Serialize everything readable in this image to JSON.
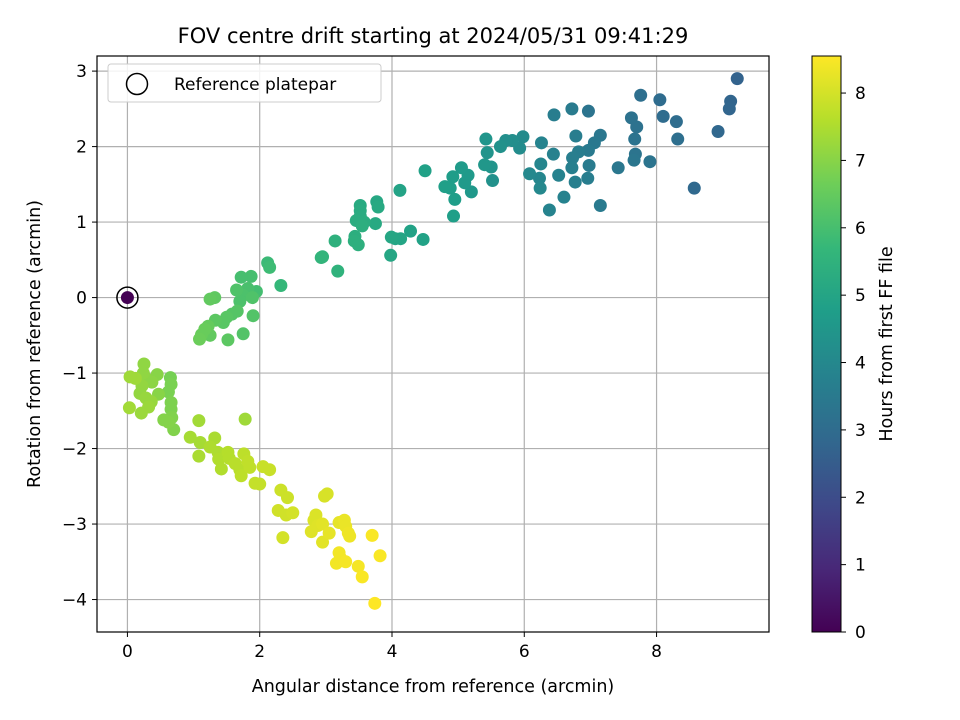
{
  "chart_data": {
    "type": "scatter",
    "title": "FOV centre drift starting at 2024/05/31 09:41:29",
    "xlabel": "Angular distance from reference (arcmin)",
    "ylabel": "Rotation from reference (arcmin)",
    "xlim": [
      -0.46,
      9.7
    ],
    "ylim": [
      -4.43,
      3.2
    ],
    "xticks": [
      0,
      2,
      4,
      6,
      8
    ],
    "yticks": [
      -4,
      -3,
      -2,
      -1,
      0,
      1,
      2,
      3
    ],
    "xtick_labels": [
      "0",
      "2",
      "4",
      "6",
      "8"
    ],
    "ytick_labels": [
      "−4",
      "−3",
      "−2",
      "−1",
      "0",
      "1",
      "2",
      "3"
    ],
    "grid": true,
    "legend": {
      "placement": "top-left",
      "label": "Reference platepar",
      "marker": "open-circle"
    },
    "reference_point": {
      "x": 0,
      "y": 0
    },
    "colorbar": {
      "label": "Hours from first FF file",
      "colormap": "viridis",
      "range": [
        0,
        8.55
      ],
      "ticks": [
        0,
        1,
        2,
        3,
        4,
        5,
        6,
        7,
        8
      ],
      "tick_labels": [
        "0",
        "1",
        "2",
        "3",
        "4",
        "5",
        "6",
        "7",
        "8"
      ]
    },
    "colormap_stops": [
      "#440154",
      "#482878",
      "#3e4989",
      "#31688e",
      "#26828e",
      "#1f9e89",
      "#35b779",
      "#6ece58",
      "#b5de2b",
      "#fde725"
    ],
    "points": [
      [
        0,
        0,
        0
      ],
      [
        9.22,
        2.9,
        2.7
      ],
      [
        9.12,
        2.6,
        2.75
      ],
      [
        9.1,
        2.5,
        2.8
      ],
      [
        8.93,
        2.2,
        2.85
      ],
      [
        8.57,
        1.45,
        2.9
      ],
      [
        8.05,
        2.62,
        3.0
      ],
      [
        8.1,
        2.4,
        3.0
      ],
      [
        8.3,
        2.33,
        3.05
      ],
      [
        8.32,
        2.1,
        3.1
      ],
      [
        7.76,
        2.68,
        3.1
      ],
      [
        7.7,
        2.26,
        3.2
      ],
      [
        7.62,
        2.38,
        3.2
      ],
      [
        7.67,
        2.1,
        3.25
      ],
      [
        7.68,
        1.9,
        3.3
      ],
      [
        7.9,
        1.8,
        3.3
      ],
      [
        7.66,
        1.82,
        3.35
      ],
      [
        7.42,
        1.72,
        3.4
      ],
      [
        7.15,
        2.15,
        3.4
      ],
      [
        7.06,
        2.05,
        3.45
      ],
      [
        7.15,
        1.22,
        3.5
      ],
      [
        6.97,
        2.47,
        3.3
      ],
      [
        6.97,
        1.95,
        3.5
      ],
      [
        6.98,
        1.75,
        3.55
      ],
      [
        6.96,
        1.58,
        3.6
      ],
      [
        6.82,
        1.93,
        3.6
      ],
      [
        6.72,
        2.5,
        3.55
      ],
      [
        6.78,
        2.14,
        3.6
      ],
      [
        6.73,
        1.85,
        3.65
      ],
      [
        6.72,
        1.72,
        3.7
      ],
      [
        6.77,
        1.53,
        3.7
      ],
      [
        6.45,
        2.42,
        3.6
      ],
      [
        6.44,
        1.9,
        3.75
      ],
      [
        6.52,
        1.62,
        3.8
      ],
      [
        6.6,
        1.33,
        3.8
      ],
      [
        6.38,
        1.16,
        3.85
      ],
      [
        6.26,
        2.05,
        3.85
      ],
      [
        6.25,
        1.77,
        3.9
      ],
      [
        6.23,
        1.58,
        3.95
      ],
      [
        6.24,
        1.45,
        4.0
      ],
      [
        6.08,
        1.64,
        4.0
      ],
      [
        5.98,
        2.13,
        4.1
      ],
      [
        5.93,
        1.98,
        4.15
      ],
      [
        5.82,
        2.08,
        4.2
      ],
      [
        5.72,
        2.08,
        4.25
      ],
      [
        5.64,
        2.0,
        4.3
      ],
      [
        5.52,
        1.55,
        4.3
      ],
      [
        5.5,
        1.73,
        4.4
      ],
      [
        5.44,
        1.92,
        4.4
      ],
      [
        5.42,
        2.1,
        4.45
      ],
      [
        5.4,
        1.76,
        4.5
      ],
      [
        5.2,
        1.4,
        4.55
      ],
      [
        5.15,
        1.62,
        4.6
      ],
      [
        5.1,
        1.52,
        4.6
      ],
      [
        5.05,
        1.72,
        4.65
      ],
      [
        4.92,
        1.6,
        4.7
      ],
      [
        4.88,
        1.45,
        4.75
      ],
      [
        4.95,
        1.3,
        4.75
      ],
      [
        4.93,
        1.08,
        4.8
      ],
      [
        4.8,
        1.47,
        4.8
      ],
      [
        4.5,
        1.68,
        4.85
      ],
      [
        4.47,
        0.77,
        4.9
      ],
      [
        4.28,
        0.88,
        4.9
      ],
      [
        4.12,
        1.42,
        4.95
      ],
      [
        4.13,
        0.78,
        5.0
      ],
      [
        4.05,
        0.78,
        5.0
      ],
      [
        3.99,
        0.8,
        5.05
      ],
      [
        3.98,
        0.56,
        5.05
      ],
      [
        3.77,
        1.27,
        5.1
      ],
      [
        3.79,
        1.2,
        5.15
      ],
      [
        3.75,
        0.98,
        5.15
      ],
      [
        3.52,
        1.22,
        5.2
      ],
      [
        3.52,
        1.15,
        5.25
      ],
      [
        3.52,
        1.08,
        5.25
      ],
      [
        3.46,
        1.02,
        5.3
      ],
      [
        3.58,
        1.0,
        5.3
      ],
      [
        3.55,
        0.95,
        5.35
      ],
      [
        3.44,
        0.81,
        5.35
      ],
      [
        3.43,
        0.75,
        5.4
      ],
      [
        3.49,
        0.7,
        5.4
      ],
      [
        3.14,
        0.75,
        5.45
      ],
      [
        3.18,
        0.35,
        5.5
      ],
      [
        2.95,
        0.54,
        5.55
      ],
      [
        2.93,
        0.53,
        5.6
      ],
      [
        2.32,
        0.16,
        5.7
      ],
      [
        2.12,
        0.46,
        5.8
      ],
      [
        2.15,
        0.4,
        5.85
      ],
      [
        1.95,
        0.08,
        5.95
      ],
      [
        1.87,
        0.28,
        6.0
      ],
      [
        1.72,
        0.27,
        6.0
      ],
      [
        1.82,
        0.12,
        6.05
      ],
      [
        1.75,
        0.03,
        6.1
      ],
      [
        1.7,
        -0.05,
        6.1
      ],
      [
        1.65,
        0.1,
        6.15
      ],
      [
        1.89,
        0.0,
        6.15
      ],
      [
        1.9,
        -0.24,
        6.2
      ],
      [
        1.75,
        -0.48,
        6.2
      ],
      [
        1.66,
        -0.18,
        6.25
      ],
      [
        1.58,
        -0.22,
        6.25
      ],
      [
        1.5,
        -0.26,
        6.3
      ],
      [
        1.45,
        -0.33,
        6.3
      ],
      [
        1.33,
        -0.3,
        6.35
      ],
      [
        1.52,
        -0.56,
        6.35
      ],
      [
        1.32,
        0.0,
        6.4
      ],
      [
        1.25,
        -0.02,
        6.45
      ],
      [
        1.25,
        -0.5,
        6.45
      ],
      [
        1.22,
        -0.38,
        6.5
      ],
      [
        1.17,
        -0.42,
        6.55
      ],
      [
        1.12,
        -0.49,
        6.55
      ],
      [
        1.09,
        -0.55,
        6.6
      ],
      [
        0.65,
        -1.06,
        6.75
      ],
      [
        0.66,
        -1.15,
        6.8
      ],
      [
        0.62,
        -1.25,
        6.8
      ],
      [
        0.66,
        -1.39,
        6.85
      ],
      [
        0.66,
        -1.48,
        6.85
      ],
      [
        0.67,
        -1.59,
        6.9
      ],
      [
        0.7,
        -1.75,
        6.9
      ],
      [
        0.62,
        -1.65,
        6.95
      ],
      [
        0.55,
        -1.62,
        6.95
      ],
      [
        0.47,
        -1.28,
        7.0
      ],
      [
        0.45,
        -1.02,
        7.0
      ],
      [
        0.37,
        -1.12,
        7.05
      ],
      [
        0.28,
        -1.07,
        7.05
      ],
      [
        0.25,
        -0.88,
        7.1
      ],
      [
        0.24,
        -1.0,
        7.1
      ],
      [
        0.22,
        -1.17,
        7.15
      ],
      [
        0.19,
        -1.27,
        7.15
      ],
      [
        0.28,
        -1.33,
        7.2
      ],
      [
        0.36,
        -1.38,
        7.2
      ],
      [
        0.32,
        -1.45,
        7.25
      ],
      [
        0.21,
        -1.53,
        7.25
      ],
      [
        0.12,
        -1.07,
        7.3
      ],
      [
        0.04,
        -1.05,
        7.3
      ],
      [
        0.03,
        -1.46,
        7.35
      ],
      [
        1.78,
        -1.61,
        7.3
      ],
      [
        1.08,
        -1.63,
        7.35
      ],
      [
        0.95,
        -1.85,
        7.4
      ],
      [
        1.1,
        -1.92,
        7.4
      ],
      [
        1.08,
        -2.1,
        7.45
      ],
      [
        1.32,
        -1.86,
        7.45
      ],
      [
        1.25,
        -1.98,
        7.5
      ],
      [
        1.37,
        -2.05,
        7.5
      ],
      [
        1.38,
        -2.14,
        7.55
      ],
      [
        1.42,
        -2.27,
        7.55
      ],
      [
        1.52,
        -2.05,
        7.6
      ],
      [
        1.54,
        -2.13,
        7.6
      ],
      [
        1.63,
        -2.2,
        7.65
      ],
      [
        1.7,
        -2.28,
        7.65
      ],
      [
        1.72,
        -2.36,
        7.7
      ],
      [
        1.76,
        -2.07,
        7.7
      ],
      [
        1.82,
        -2.17,
        7.75
      ],
      [
        1.85,
        -2.25,
        7.75
      ],
      [
        1.93,
        -2.46,
        7.8
      ],
      [
        2.0,
        -2.47,
        7.8
      ],
      [
        2.05,
        -2.24,
        7.85
      ],
      [
        2.15,
        -2.28,
        7.85
      ],
      [
        2.32,
        -2.55,
        7.9
      ],
      [
        2.42,
        -2.65,
        7.9
      ],
      [
        2.28,
        -2.82,
        7.95
      ],
      [
        2.4,
        -2.88,
        7.95
      ],
      [
        2.5,
        -2.85,
        8.0
      ],
      [
        2.35,
        -3.18,
        8.0
      ],
      [
        2.98,
        -2.63,
        8.05
      ],
      [
        3.02,
        -2.6,
        8.05
      ],
      [
        2.82,
        -2.95,
        8.1
      ],
      [
        2.85,
        -2.88,
        8.1
      ],
      [
        2.78,
        -3.1,
        8.15
      ],
      [
        2.88,
        -3.02,
        8.15
      ],
      [
        2.95,
        -3.0,
        8.2
      ],
      [
        2.95,
        -3.24,
        8.2
      ],
      [
        3.05,
        -3.12,
        8.25
      ],
      [
        3.2,
        -2.98,
        8.25
      ],
      [
        3.28,
        -2.95,
        8.3
      ],
      [
        3.3,
        -3.03,
        8.3
      ],
      [
        3.34,
        -3.12,
        8.35
      ],
      [
        3.36,
        -3.16,
        8.35
      ],
      [
        3.2,
        -3.38,
        8.4
      ],
      [
        3.22,
        -3.45,
        8.4
      ],
      [
        3.16,
        -3.52,
        8.4
      ],
      [
        3.3,
        -3.5,
        8.45
      ],
      [
        3.49,
        -3.56,
        8.45
      ],
      [
        3.55,
        -3.7,
        8.5
      ],
      [
        3.7,
        -3.15,
        8.5
      ],
      [
        3.82,
        -3.42,
        8.5
      ],
      [
        3.74,
        -4.05,
        8.55
      ]
    ]
  }
}
